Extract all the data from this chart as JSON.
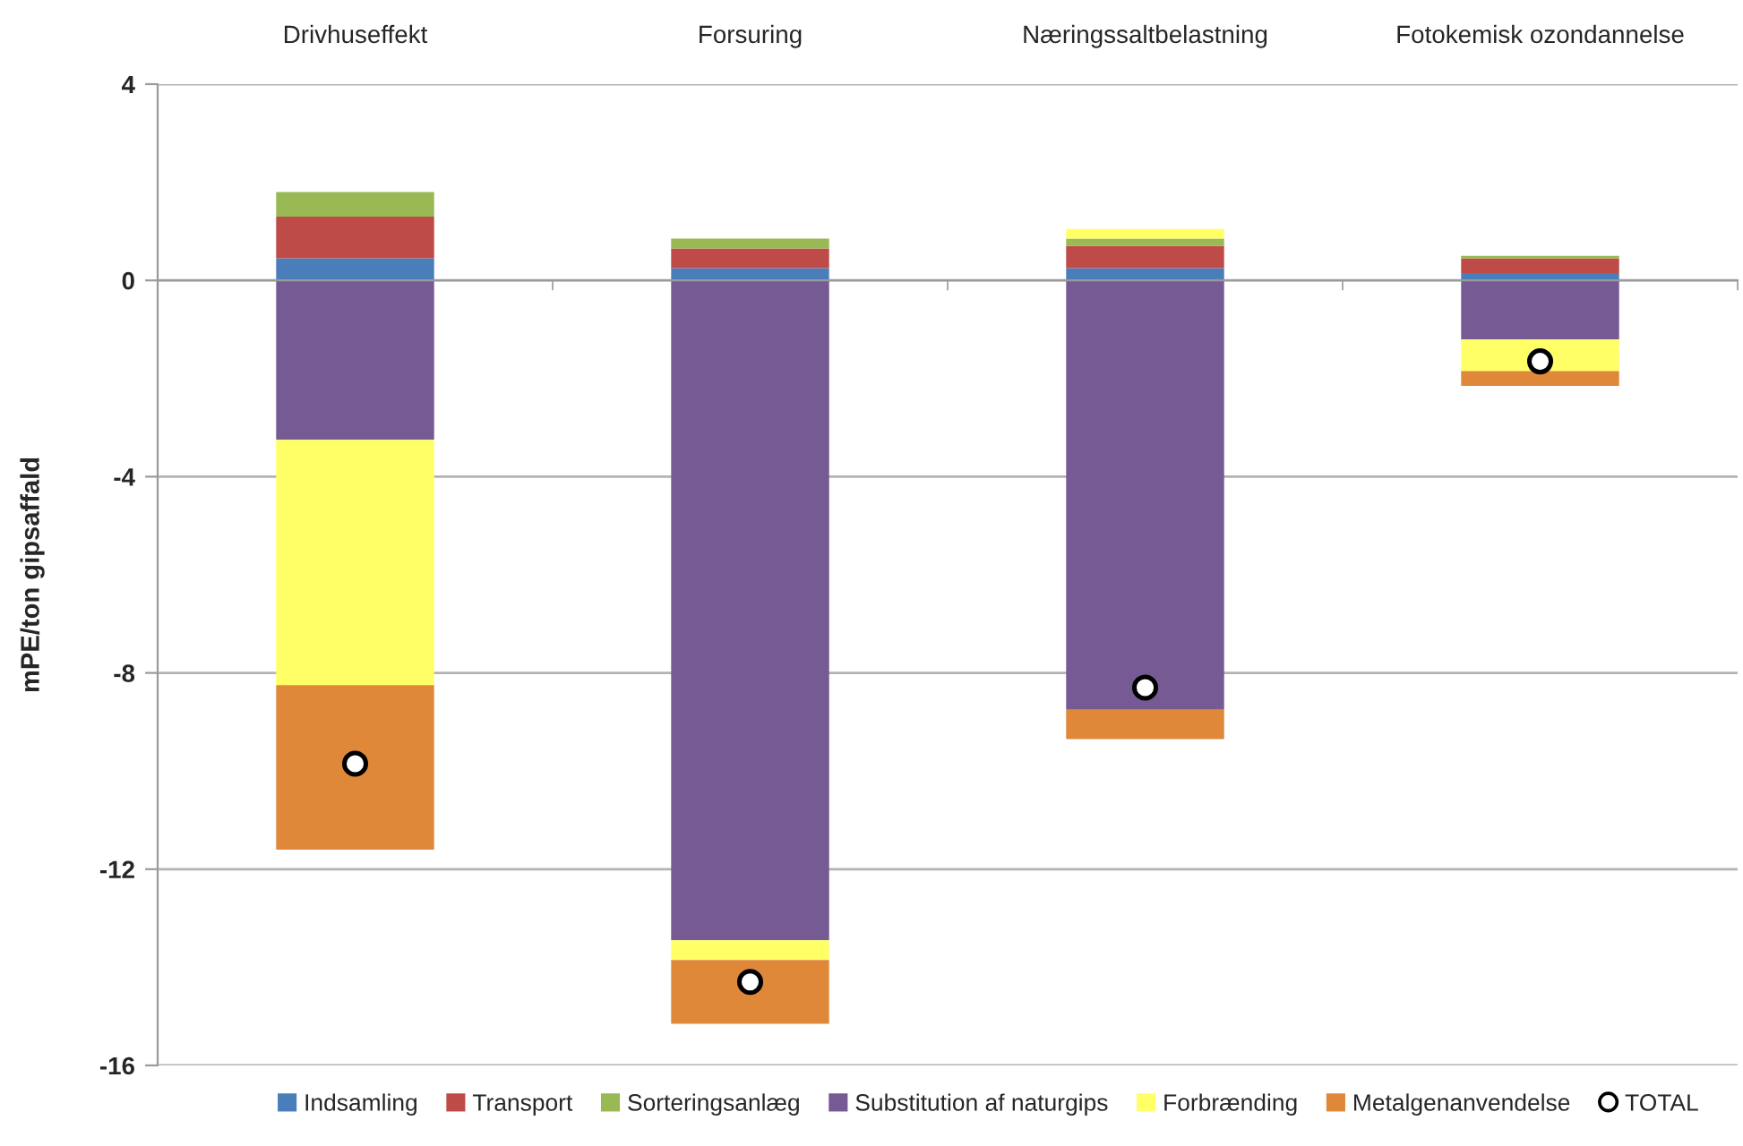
{
  "chart_data": {
    "type": "bar",
    "stacked": true,
    "categories": [
      "Drivhuseffekt",
      "Forsuring",
      "Næringssaltbelastning",
      "Fotokemisk ozondannelse"
    ],
    "ylabel": "mPE/ton gipsaffald",
    "ylim": [
      -16,
      4
    ],
    "yticks": [
      -16,
      -12,
      -8,
      -4,
      0,
      4
    ],
    "grid": "y",
    "legend": "bottom",
    "series": [
      {
        "name": "Indsamling",
        "color": "#4a7ebb",
        "values": [
          0.45,
          0.25,
          0.25,
          0.15
        ]
      },
      {
        "name": "Transport",
        "color": "#be4b48",
        "values": [
          0.85,
          0.4,
          0.45,
          0.3
        ]
      },
      {
        "name": "Sorteringsanlæg",
        "color": "#98b954",
        "values": [
          0.5,
          0.2,
          0.15,
          0.05
        ]
      },
      {
        "name": "Substitution af naturgips",
        "color": "#765a93",
        "values": [
          -3.25,
          -13.45,
          -8.75,
          -1.2
        ]
      },
      {
        "name": "Forbrænding",
        "color": "#ffff66",
        "values": [
          -5.0,
          -0.4,
          0.2,
          -0.65
        ]
      },
      {
        "name": "Metalgenanvendelse",
        "color": "#e0883a",
        "values": [
          -3.35,
          -1.3,
          -0.6,
          -0.3
        ]
      },
      {
        "name": "TOTAL",
        "type": "scatter",
        "color": "#ffffff",
        "marker": "circle",
        "x": [
          "Drivhuseffekt",
          "Forsuring",
          "Næringssaltbelastning",
          "Fotokemisk ozondannelse"
        ],
        "values": [
          -9.85,
          -14.3,
          -8.3,
          -1.65
        ]
      }
    ]
  }
}
